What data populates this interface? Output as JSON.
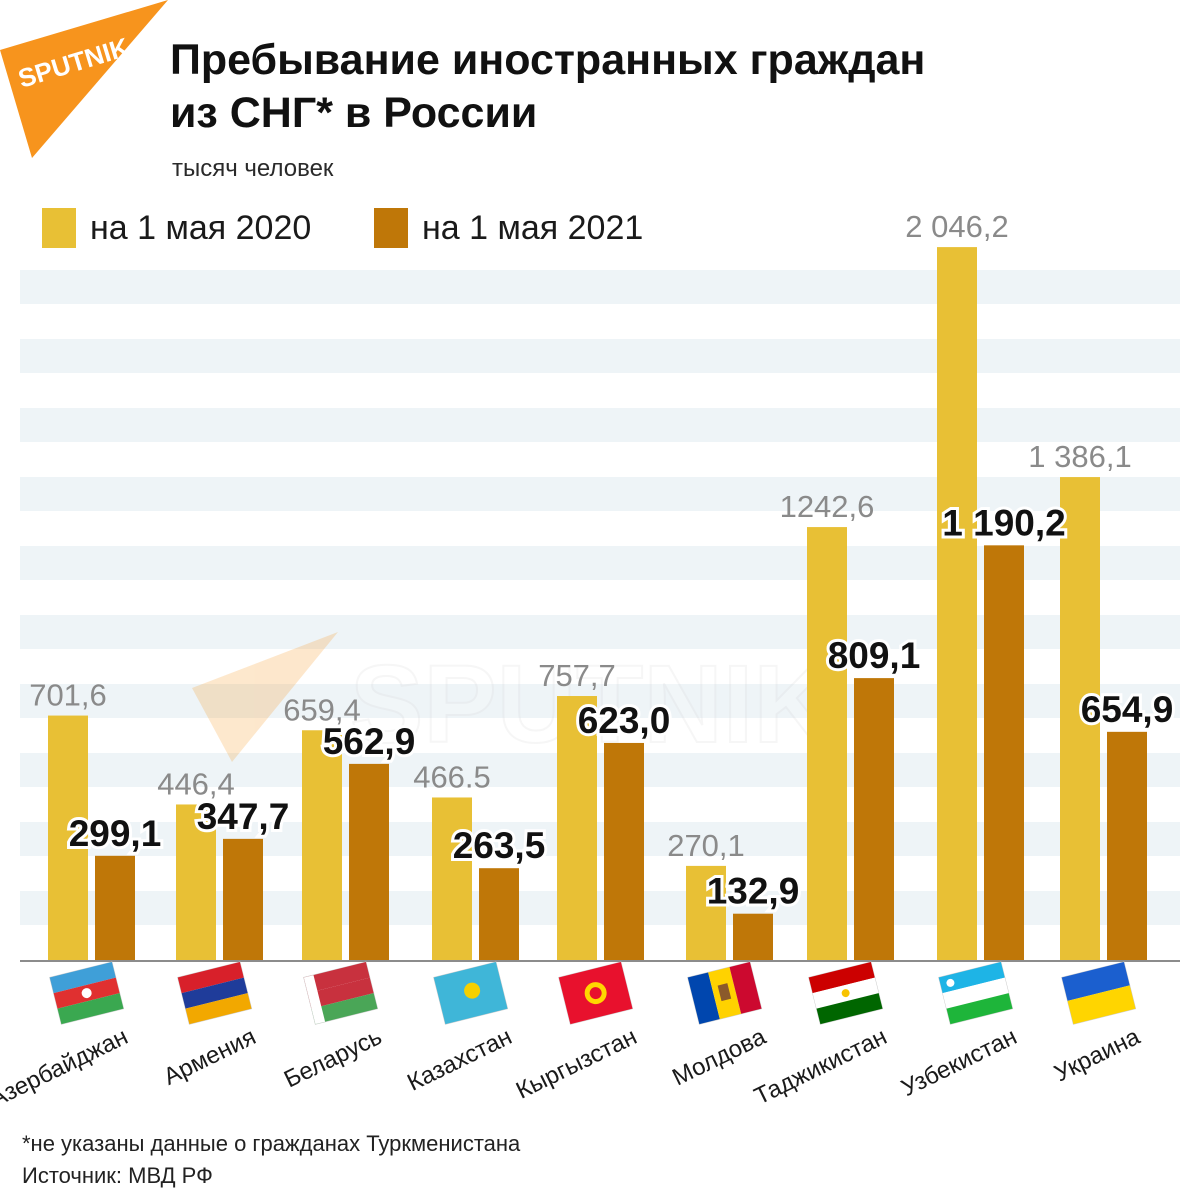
{
  "brand": {
    "logo_text": "SPUTNIK",
    "accent_color": "#f7941d"
  },
  "header": {
    "title_line1": "Пребывание иностранных граждан",
    "title_line2": "из СНГ* в России",
    "subtitle": "тысяч человек"
  },
  "legend": {
    "items": [
      {
        "label": "на 1 мая 2020",
        "color": "#e8c035"
      },
      {
        "label": "на 1 мая 2021",
        "color": "#bf7708"
      }
    ]
  },
  "chart_data": {
    "type": "bar",
    "title": "Пребывание иностранных граждан из СНГ* в России",
    "ylabel": "тысяч человек",
    "grid": true,
    "categories": [
      "Азербайджан",
      "Армения",
      "Беларусь",
      "Казахстан",
      "Кыргызстан",
      "Молдова",
      "Таджикистан",
      "Узбекистан",
      "Украина"
    ],
    "series": [
      {
        "name": "на 1 мая 2020",
        "color": "#e8c035",
        "values": [
          701.6,
          446.4,
          659.4,
          466.5,
          757.7,
          270.1,
          1242.6,
          2046.2,
          1386.1
        ],
        "labels": [
          "701,6",
          "446,4",
          "659,4",
          "466.5",
          "757,7",
          "270,1",
          "1242,6",
          "2 046,2",
          "1 386,1"
        ]
      },
      {
        "name": "на 1 мая 2021",
        "color": "#bf7708",
        "values": [
          299.1,
          347.7,
          562.9,
          263.5,
          623.0,
          132.9,
          809.1,
          1190.2,
          654.9
        ],
        "labels": [
          "299,1",
          "347,7",
          "562,9",
          "263,5",
          "623,0",
          "132,9",
          "809,1",
          "1 190,2",
          "654,9"
        ]
      }
    ],
    "flags": [
      "azerbaijan-flag",
      "armenia-flag",
      "belarus-flag",
      "kazakhstan-flag",
      "kyrgyzstan-flag",
      "moldova-flag",
      "tajikistan-flag",
      "uzbekistan-flag",
      "ukraine-flag"
    ]
  },
  "footer": {
    "note": "*не указаны данные о гражданах Туркменистана",
    "source": "Источник: МВД РФ"
  }
}
